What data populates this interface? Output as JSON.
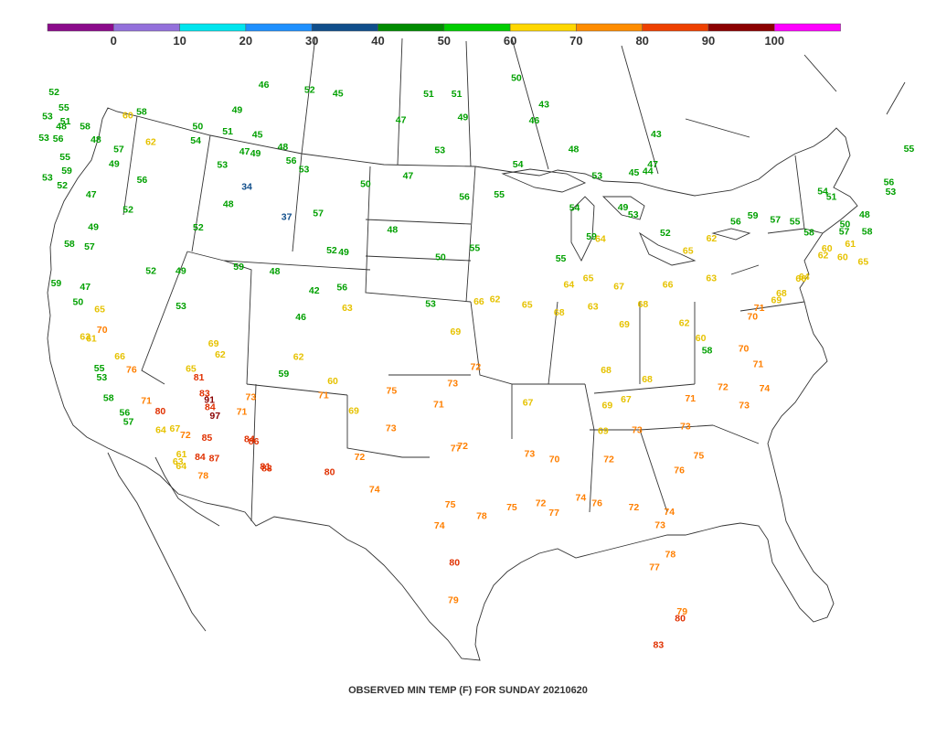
{
  "caption": "OBSERVED MIN TEMP (F) FOR SUNDAY 20210620",
  "legend": {
    "ticks": [
      "0",
      "10",
      "20",
      "30",
      "40",
      "50",
      "60",
      "70",
      "80",
      "90",
      "100"
    ],
    "colors": [
      "#8b0b8b",
      "#9370db",
      "#00e5ee",
      "#1e90ff",
      "#104e8b",
      "#008b00",
      "#00cd00",
      "#ffd700",
      "#ff8c00",
      "#ee4000",
      "#8b0000",
      "#ff00ff"
    ]
  },
  "chart_data": {
    "type": "map",
    "title": "OBSERVED MIN TEMP (F) FOR SUNDAY 20210620",
    "legend_ticks": [
      0,
      10,
      20,
      30,
      40,
      50,
      60,
      70,
      80,
      90,
      100
    ],
    "observations": [
      {
        "v": 52,
        "lon": -122.8,
        "lat": 48.9
      },
      {
        "v": 55,
        "lon": -122.3,
        "lat": 48.2
      },
      {
        "v": 53,
        "lon": -123.4,
        "lat": 47.9
      },
      {
        "v": 48,
        "lon": -122.6,
        "lat": 47.4
      },
      {
        "v": 51,
        "lon": -122.3,
        "lat": 47.6
      },
      {
        "v": 53,
        "lon": -123.8,
        "lat": 47.0
      },
      {
        "v": 56,
        "lon": -122.9,
        "lat": 46.9
      },
      {
        "v": 55,
        "lon": -122.6,
        "lat": 46.1
      },
      {
        "v": 58,
        "lon": -121.1,
        "lat": 47.3
      },
      {
        "v": 48,
        "lon": -120.5,
        "lat": 46.7
      },
      {
        "v": 57,
        "lon": -119.1,
        "lat": 46.2
      },
      {
        "v": 60,
        "lon": -118.3,
        "lat": 47.6
      },
      {
        "v": 58,
        "lon": -117.4,
        "lat": 47.7
      },
      {
        "v": 62,
        "lon": -117.0,
        "lat": 46.4
      },
      {
        "v": 49,
        "lon": -119.5,
        "lat": 45.6
      },
      {
        "v": 47,
        "lon": -121.2,
        "lat": 44.4
      },
      {
        "v": 53,
        "lon": -123.9,
        "lat": 45.3
      },
      {
        "v": 52,
        "lon": -123.0,
        "lat": 44.9
      },
      {
        "v": 59,
        "lon": -122.6,
        "lat": 45.5
      },
      {
        "v": 58,
        "lon": -123.0,
        "lat": 42.4
      },
      {
        "v": 57,
        "lon": -121.7,
        "lat": 42.2
      },
      {
        "v": 56,
        "lon": -117.8,
        "lat": 44.8
      },
      {
        "v": 52,
        "lon": -118.9,
        "lat": 43.6
      },
      {
        "v": 49,
        "lon": -121.3,
        "lat": 43.0
      },
      {
        "v": 59,
        "lon": -124.2,
        "lat": 40.8
      },
      {
        "v": 47,
        "lon": -122.3,
        "lat": 40.5
      },
      {
        "v": 50,
        "lon": -122.9,
        "lat": 39.9
      },
      {
        "v": 65,
        "lon": -121.5,
        "lat": 39.5
      },
      {
        "v": 70,
        "lon": -121.5,
        "lat": 38.6
      },
      {
        "v": 61,
        "lon": -122.3,
        "lat": 38.3
      },
      {
        "v": 63,
        "lon": -122.7,
        "lat": 38.4
      },
      {
        "v": 66,
        "lon": -120.5,
        "lat": 37.4
      },
      {
        "v": 76,
        "lon": -119.8,
        "lat": 36.8
      },
      {
        "v": 71,
        "lon": -119.0,
        "lat": 35.4
      },
      {
        "v": 80,
        "lon": -118.1,
        "lat": 34.9
      },
      {
        "v": 64,
        "lon": -118.2,
        "lat": 34.1
      },
      {
        "v": 67,
        "lon": -117.2,
        "lat": 34.1
      },
      {
        "v": 72,
        "lon": -116.5,
        "lat": 33.8
      },
      {
        "v": 84,
        "lon": -114.6,
        "lat": 34.9
      },
      {
        "v": 85,
        "lon": -115.0,
        "lat": 33.6
      },
      {
        "v": 84,
        "lon": -115.6,
        "lat": 32.8
      },
      {
        "v": 78,
        "lon": -115.5,
        "lat": 32.0
      },
      {
        "v": 81,
        "lon": -115.2,
        "lat": 36.2
      },
      {
        "v": 83,
        "lon": -114.9,
        "lat": 35.5
      },
      {
        "v": 91,
        "lon": -114.6,
        "lat": 35.2
      },
      {
        "v": 97,
        "lon": -114.3,
        "lat": 34.5
      },
      {
        "v": 61,
        "lon": -116.9,
        "lat": 33.0
      },
      {
        "v": 63,
        "lon": -117.2,
        "lat": 32.7
      },
      {
        "v": 64,
        "lon": -117.0,
        "lat": 32.5
      },
      {
        "v": 53,
        "lon": -121.9,
        "lat": 36.6
      },
      {
        "v": 55,
        "lon": -122.0,
        "lat": 37.0
      },
      {
        "v": 58,
        "lon": -121.6,
        "lat": 35.7
      },
      {
        "v": 56,
        "lon": -120.6,
        "lat": 35.0
      },
      {
        "v": 57,
        "lon": -120.4,
        "lat": 34.6
      },
      {
        "v": 51,
        "lon": -112.0,
        "lat": 46.6
      },
      {
        "v": 49,
        "lon": -111.3,
        "lat": 47.5
      },
      {
        "v": 46,
        "lon": -109.5,
        "lat": 48.5
      },
      {
        "v": 45,
        "lon": -104.8,
        "lat": 48.0
      },
      {
        "v": 52,
        "lon": -106.6,
        "lat": 48.2
      },
      {
        "v": 48,
        "lon": -108.5,
        "lat": 45.8
      },
      {
        "v": 47,
        "lon": -111.0,
        "lat": 45.7
      },
      {
        "v": 50,
        "lon": -113.9,
        "lat": 46.9
      },
      {
        "v": 54,
        "lon": -114.1,
        "lat": 46.3
      },
      {
        "v": 53,
        "lon": -112.5,
        "lat": 45.2
      },
      {
        "v": 45,
        "lon": -110.1,
        "lat": 46.4
      },
      {
        "v": 49,
        "lon": -110.3,
        "lat": 45.6
      },
      {
        "v": 56,
        "lon": -108.0,
        "lat": 45.2
      },
      {
        "v": 48,
        "lon": -112.3,
        "lat": 43.5
      },
      {
        "v": 52,
        "lon": -114.4,
        "lat": 42.6
      },
      {
        "v": 34,
        "lon": -111.0,
        "lat": 44.2
      },
      {
        "v": 37,
        "lon": -108.5,
        "lat": 42.8
      },
      {
        "v": 53,
        "lon": -107.2,
        "lat": 44.8
      },
      {
        "v": 57,
        "lon": -106.4,
        "lat": 42.9
      },
      {
        "v": 49,
        "lon": -104.8,
        "lat": 41.2
      },
      {
        "v": 52,
        "lon": -105.6,
        "lat": 41.3
      },
      {
        "v": 51,
        "lon": -99.0,
        "lat": 47.9
      },
      {
        "v": 47,
        "lon": -100.8,
        "lat": 46.8
      },
      {
        "v": 49,
        "lon": -96.8,
        "lat": 46.9
      },
      {
        "v": 51,
        "lon": -97.2,
        "lat": 47.9
      },
      {
        "v": 53,
        "lon": -98.3,
        "lat": 45.5
      },
      {
        "v": 47,
        "lon": -100.4,
        "lat": 44.4
      },
      {
        "v": 50,
        "lon": -103.2,
        "lat": 44.1
      },
      {
        "v": 56,
        "lon": -96.7,
        "lat": 43.5
      },
      {
        "v": 48,
        "lon": -101.5,
        "lat": 42.1
      },
      {
        "v": 50,
        "lon": -98.3,
        "lat": 40.9
      },
      {
        "v": 55,
        "lon": -96.0,
        "lat": 41.3
      },
      {
        "v": 53,
        "lon": -99.0,
        "lat": 38.9
      },
      {
        "v": 50,
        "lon": -93.4,
        "lat": 48.6
      },
      {
        "v": 46,
        "lon": -92.2,
        "lat": 46.8
      },
      {
        "v": 43,
        "lon": -91.6,
        "lat": 47.5
      },
      {
        "v": 54,
        "lon": -93.2,
        "lat": 44.9
      },
      {
        "v": 55,
        "lon": -94.4,
        "lat": 43.6
      },
      {
        "v": 48,
        "lon": -89.6,
        "lat": 45.6
      },
      {
        "v": 54,
        "lon": -89.4,
        "lat": 43.1
      },
      {
        "v": 53,
        "lon": -88.0,
        "lat": 44.5
      },
      {
        "v": 44,
        "lon": -84.7,
        "lat": 44.8
      },
      {
        "v": 47,
        "lon": -84.4,
        "lat": 45.1
      },
      {
        "v": 43,
        "lon": -84.3,
        "lat": 46.4
      },
      {
        "v": 45,
        "lon": -85.6,
        "lat": 44.7
      },
      {
        "v": 52,
        "lon": -83.3,
        "lat": 42.2
      },
      {
        "v": 53,
        "lon": -85.5,
        "lat": 42.9
      },
      {
        "v": 49,
        "lon": -86.2,
        "lat": 43.2
      },
      {
        "v": 55,
        "lon": -90.2,
        "lat": 40.9
      },
      {
        "v": 59,
        "lon": -88.2,
        "lat": 41.9
      },
      {
        "v": 63,
        "lon": -87.9,
        "lat": 38.9
      },
      {
        "v": 64,
        "lon": -89.6,
        "lat": 39.8
      },
      {
        "v": 68,
        "lon": -90.2,
        "lat": 38.6
      },
      {
        "v": 65,
        "lon": -92.4,
        "lat": 38.9
      },
      {
        "v": 62,
        "lon": -94.6,
        "lat": 39.1
      },
      {
        "v": 66,
        "lon": -95.7,
        "lat": 39.0
      },
      {
        "v": 69,
        "lon": -97.3,
        "lat": 37.7
      },
      {
        "v": 72,
        "lon": -95.9,
        "lat": 36.2
      },
      {
        "v": 73,
        "lon": -97.5,
        "lat": 35.5
      },
      {
        "v": 71,
        "lon": -98.5,
        "lat": 34.6
      },
      {
        "v": 75,
        "lon": -101.8,
        "lat": 35.2
      },
      {
        "v": 72,
        "lon": -96.8,
        "lat": 32.8
      },
      {
        "v": 77,
        "lon": -97.3,
        "lat": 32.7
      },
      {
        "v": 75,
        "lon": -97.7,
        "lat": 30.3
      },
      {
        "v": 74,
        "lon": -98.5,
        "lat": 29.4
      },
      {
        "v": 78,
        "lon": -95.4,
        "lat": 29.8
      },
      {
        "v": 80,
        "lon": -97.4,
        "lat": 27.8
      },
      {
        "v": 79,
        "lon": -97.5,
        "lat": 26.2
      },
      {
        "v": 73,
        "lon": -101.9,
        "lat": 33.6
      },
      {
        "v": 71,
        "lon": -106.6,
        "lat": 35.1
      },
      {
        "v": 80,
        "lon": -106.4,
        "lat": 31.8
      },
      {
        "v": 72,
        "lon": -104.2,
        "lat": 32.4
      },
      {
        "v": 74,
        "lon": -103.2,
        "lat": 31.0
      },
      {
        "v": 84,
        "lon": -112.0,
        "lat": 33.4
      },
      {
        "v": 86,
        "lon": -111.7,
        "lat": 33.3
      },
      {
        "v": 81,
        "lon": -111.0,
        "lat": 32.2
      },
      {
        "v": 83,
        "lon": -110.9,
        "lat": 32.1
      },
      {
        "v": 87,
        "lon": -114.6,
        "lat": 32.7
      },
      {
        "v": 73,
        "lon": -111.7,
        "lat": 35.2
      },
      {
        "v": 71,
        "lon": -112.4,
        "lat": 34.6
      },
      {
        "v": 59,
        "lon": -109.3,
        "lat": 36.1
      },
      {
        "v": 62,
        "lon": -108.2,
        "lat": 36.8
      },
      {
        "v": 60,
        "lon": -105.9,
        "lat": 35.7
      },
      {
        "v": 69,
        "lon": -104.5,
        "lat": 34.4
      },
      {
        "v": 63,
        "lon": -104.7,
        "lat": 38.8
      },
      {
        "v": 56,
        "lon": -105.0,
        "lat": 39.7
      },
      {
        "v": 42,
        "lon": -106.9,
        "lat": 39.6
      },
      {
        "v": 46,
        "lon": -107.9,
        "lat": 38.5
      },
      {
        "v": 48,
        "lon": -109.5,
        "lat": 40.5
      },
      {
        "v": 59,
        "lon": -111.9,
        "lat": 40.8
      },
      {
        "v": 62,
        "lon": -113.6,
        "lat": 37.1
      },
      {
        "v": 65,
        "lon": -115.7,
        "lat": 36.6
      },
      {
        "v": 69,
        "lon": -114.0,
        "lat": 37.6
      },
      {
        "v": 52,
        "lon": -117.8,
        "lat": 40.9
      },
      {
        "v": 53,
        "lon": -116.0,
        "lat": 39.3
      },
      {
        "v": 49,
        "lon": -115.8,
        "lat": 40.8
      },
      {
        "v": 67,
        "lon": -92.2,
        "lat": 34.7
      },
      {
        "v": 70,
        "lon": -90.2,
        "lat": 32.3
      },
      {
        "v": 72,
        "lon": -91.1,
        "lat": 30.4
      },
      {
        "v": 77,
        "lon": -90.1,
        "lat": 30.0
      },
      {
        "v": 75,
        "lon": -93.2,
        "lat": 30.2
      },
      {
        "v": 73,
        "lon": -92.0,
        "lat": 32.5
      },
      {
        "v": 74,
        "lon": -88.2,
        "lat": 30.7
      },
      {
        "v": 76,
        "lon": -87.0,
        "lat": 30.5
      },
      {
        "v": 72,
        "lon": -86.3,
        "lat": 32.4
      },
      {
        "v": 73,
        "lon": -84.4,
        "lat": 33.7
      },
      {
        "v": 69,
        "lon": -86.8,
        "lat": 33.6
      },
      {
        "v": 69,
        "lon": -86.6,
        "lat": 34.7
      },
      {
        "v": 68,
        "lon": -86.8,
        "lat": 36.2
      },
      {
        "v": 67,
        "lon": -85.3,
        "lat": 35.0
      },
      {
        "v": 68,
        "lon": -83.9,
        "lat": 35.9
      },
      {
        "v": 71,
        "lon": -80.8,
        "lat": 35.2
      },
      {
        "v": 73,
        "lon": -81.0,
        "lat": 34.0
      },
      {
        "v": 75,
        "lon": -79.9,
        "lat": 32.8
      },
      {
        "v": 76,
        "lon": -81.2,
        "lat": 32.1
      },
      {
        "v": 74,
        "lon": -81.7,
        "lat": 30.3
      },
      {
        "v": 73,
        "lon": -82.3,
        "lat": 29.7
      },
      {
        "v": 79,
        "lon": -80.2,
        "lat": 26.1
      },
      {
        "v": 80,
        "lon": -80.3,
        "lat": 25.8
      },
      {
        "v": 83,
        "lon": -81.8,
        "lat": 24.6
      },
      {
        "v": 77,
        "lon": -82.5,
        "lat": 27.9
      },
      {
        "v": 78,
        "lon": -81.4,
        "lat": 28.5
      },
      {
        "v": 72,
        "lon": -84.3,
        "lat": 30.4
      },
      {
        "v": 70,
        "lon": -77.4,
        "lat": 37.5
      },
      {
        "v": 71,
        "lon": -76.3,
        "lat": 36.9
      },
      {
        "v": 72,
        "lon": -78.6,
        "lat": 35.8
      },
      {
        "v": 73,
        "lon": -77.0,
        "lat": 35.1
      },
      {
        "v": 74,
        "lon": -75.7,
        "lat": 35.9
      },
      {
        "v": 70,
        "lon": -77.0,
        "lat": 38.9
      },
      {
        "v": 71,
        "lon": -76.6,
        "lat": 39.3
      },
      {
        "v": 69,
        "lon": -75.5,
        "lat": 39.7
      },
      {
        "v": 68,
        "lon": -75.2,
        "lat": 40.0
      },
      {
        "v": 66,
        "lon": -74.0,
        "lat": 40.7
      },
      {
        "v": 64,
        "lon": -73.8,
        "lat": 40.8
      },
      {
        "v": 62,
        "lon": -72.7,
        "lat": 41.8
      },
      {
        "v": 60,
        "lon": -71.4,
        "lat": 41.8
      },
      {
        "v": 61,
        "lon": -71.0,
        "lat": 42.4
      },
      {
        "v": 60,
        "lon": -72.5,
        "lat": 42.1
      },
      {
        "v": 58,
        "lon": -73.8,
        "lat": 42.7
      },
      {
        "v": 55,
        "lon": -74.8,
        "lat": 43.1
      },
      {
        "v": 57,
        "lon": -76.1,
        "lat": 43.1
      },
      {
        "v": 59,
        "lon": -77.6,
        "lat": 43.2
      },
      {
        "v": 56,
        "lon": -78.7,
        "lat": 42.9
      },
      {
        "v": 62,
        "lon": -80.2,
        "lat": 42.1
      },
      {
        "v": 65,
        "lon": -81.7,
        "lat": 41.5
      },
      {
        "v": 63,
        "lon": -80.0,
        "lat": 40.4
      },
      {
        "v": 66,
        "lon": -82.9,
        "lat": 40.0
      },
      {
        "v": 68,
        "lon": -84.5,
        "lat": 39.1
      },
      {
        "v": 69,
        "lon": -85.7,
        "lat": 38.2
      },
      {
        "v": 67,
        "lon": -86.2,
        "lat": 39.8
      },
      {
        "v": 64,
        "lon": -87.6,
        "lat": 41.8
      },
      {
        "v": 65,
        "lon": -88.3,
        "lat": 40.1
      },
      {
        "v": 62,
        "lon": -81.6,
        "lat": 38.4
      },
      {
        "v": 58,
        "lon": -79.9,
        "lat": 37.3
      },
      {
        "v": 60,
        "lon": -80.4,
        "lat": 37.8
      },
      {
        "v": 54,
        "lon": -73.2,
        "lat": 44.5
      },
      {
        "v": 51,
        "lon": -72.6,
        "lat": 44.3
      },
      {
        "v": 50,
        "lon": -71.5,
        "lat": 43.2
      },
      {
        "v": 48,
        "lon": -70.3,
        "lat": 43.7
      },
      {
        "v": 53,
        "lon": -68.8,
        "lat": 44.8
      },
      {
        "v": 55,
        "lon": -68.0,
        "lat": 46.7
      },
      {
        "v": 56,
        "lon": -69.0,
        "lat": 45.2
      },
      {
        "v": 58,
        "lon": -70.0,
        "lat": 43.0
      },
      {
        "v": 57,
        "lon": -71.5,
        "lat": 42.9
      },
      {
        "v": 65,
        "lon": -70.0,
        "lat": 41.7
      }
    ]
  }
}
